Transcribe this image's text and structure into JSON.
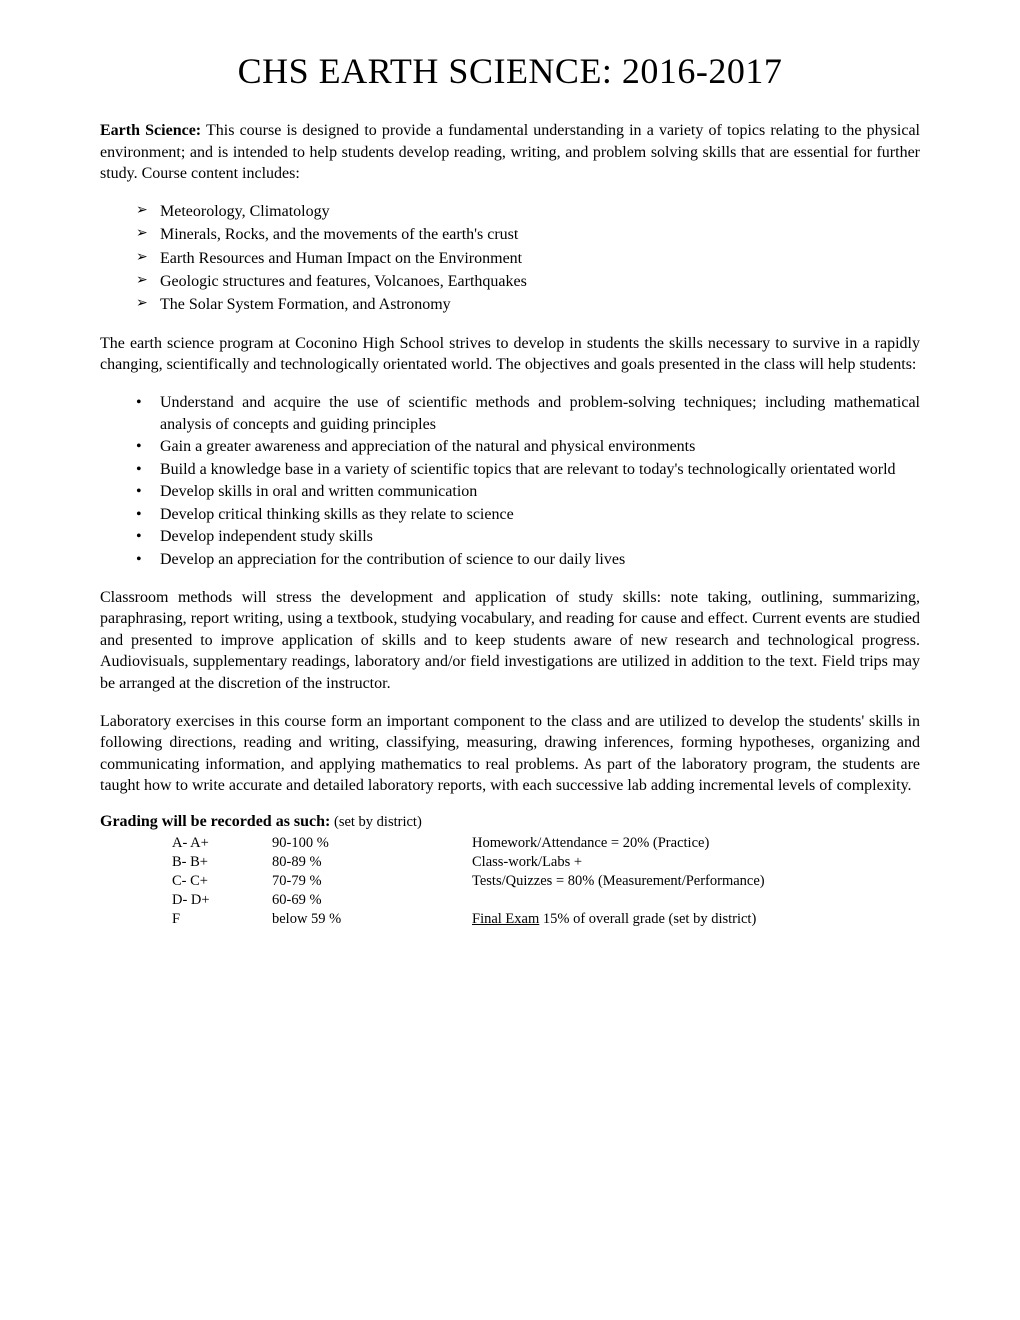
{
  "title": "CHS EARTH SCIENCE: 2016-2017",
  "intro": {
    "label": "Earth Science:",
    "text": " This course is designed to provide a fundamental understanding in a variety of topics relating to the physical environment; and is intended to help students develop reading, writing, and problem solving skills that are essential for further study. Course content includes:"
  },
  "topics": [
    "Meteorology, Climatology",
    "Minerals, Rocks, and the movements of the earth's crust",
    "Earth Resources and Human Impact on the Environment",
    "Geologic structures and features, Volcanoes, Earthquakes",
    "The Solar System Formation, and Astronomy"
  ],
  "program_intro": "The earth science program at Coconino High School strives to develop in students the skills necessary to survive in a rapidly changing, scientifically and technologically orientated world. The objectives and goals presented in the class will help students:",
  "objectives": [
    "Understand and acquire the use of scientific methods and problem-solving techniques; including mathematical analysis of concepts and guiding principles",
    "Gain a greater awareness and appreciation of the natural and physical environments",
    "Build a knowledge base in a variety of scientific topics that are relevant to today's technologically orientated world",
    "Develop skills in oral and written communication",
    "Develop critical thinking skills as they relate to science",
    "Develop independent study skills",
    "Develop an appreciation for the contribution of science to our daily lives"
  ],
  "methods_para": "Classroom methods will stress the development and application of study skills:  note taking, outlining, summarizing, paraphrasing, report writing, using a textbook, studying vocabulary, and reading for cause and effect. Current events are studied and presented to improve application of skills and to keep students aware of new research and technological progress. Audiovisuals, supplementary readings, laboratory and/or field investigations are utilized in addition to the text. Field trips may be arranged at the discretion of the instructor.",
  "lab_para": "Laboratory exercises in this course form an important component to the class and are utilized to develop the students' skills in following directions, reading and writing, classifying, measuring, drawing inferences, forming hypotheses, organizing and communicating information, and applying mathematics to real problems. As part of the laboratory program, the students are taught how to write accurate and detailed laboratory reports, with each successive lab adding incremental levels of complexity.",
  "grading": {
    "header_bold": "Grading will be recorded as such:",
    "header_small": " (set by district)",
    "rows": [
      {
        "grade": "A-  A+",
        "range": "90-100 %",
        "desc": "Homework/Attendance  = 20% (Practice)"
      },
      {
        "grade": "B-  B+",
        "range": "80-89   %",
        "desc": "Class-work/Labs +"
      },
      {
        "grade": "C-  C+",
        "range": "70-79   %",
        "desc": "Tests/Quizzes  = 80% (Measurement/Performance)"
      },
      {
        "grade": "D-  D+",
        "range": "60-69   %",
        "desc": ""
      },
      {
        "grade": "F",
        "range": "below 59 %",
        "desc_underline": "Final Exam",
        "desc_rest": " 15% of overall grade (set by district)"
      }
    ]
  }
}
